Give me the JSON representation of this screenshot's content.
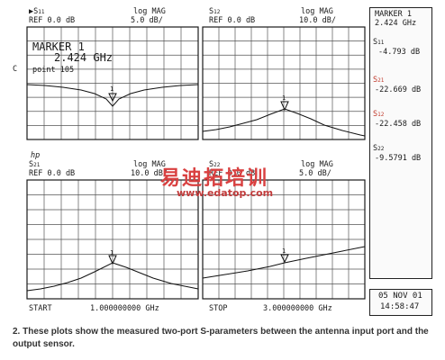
{
  "top_left": {
    "param": "▶S",
    "param_sub": "11",
    "ref": "REF 0.0 dB",
    "format": "log MAG",
    "scale": "5.0 dB/",
    "marker_title": "MARKER 1",
    "marker_freq": "2.424 GHz",
    "c": "C",
    "point": "point 105",
    "marker_num": "1"
  },
  "top_right": {
    "param": "S",
    "param_sub": "12",
    "ref": "REF 0.0 dB",
    "format": "log MAG",
    "scale": "10.0 dB/",
    "marker_num": "1"
  },
  "bottom_left": {
    "hp": "hp",
    "param": "S",
    "param_sub": "21",
    "ref": "REF 0.0 dB",
    "format": "log MAG",
    "scale": "10.0 dB/",
    "marker_num": "1"
  },
  "bottom_right": {
    "param": "S",
    "param_sub": "22",
    "ref": "REF 0.0 dB",
    "format": "log MAG",
    "scale": "5.0 dB/",
    "marker_num": "1"
  },
  "sweep": {
    "start_label": "START",
    "start_value": "1.000000000 GHz",
    "stop_label": "STOP",
    "stop_value": "3.000000000 GHz"
  },
  "marker_panel": {
    "title": "MARKER 1",
    "freq": "2.424 GHz",
    "items": [
      {
        "param": "S",
        "sub": "11",
        "value": "-4.793 dB",
        "color": "#1a1a1a"
      },
      {
        "param": "S",
        "sub": "21",
        "value": "-22.669 dB",
        "color": "#c0392b"
      },
      {
        "param": "S",
        "sub": "12",
        "value": "-22.458 dB",
        "color": "#c0392b"
      },
      {
        "param": "S",
        "sub": "22",
        "value": "-9.5791 dB",
        "color": "#1a1a1a"
      }
    ]
  },
  "datetime": {
    "date": "05 NOV 01",
    "time": "14:58:47"
  },
  "watermark": {
    "cn": "易迪拓培训",
    "url": "www.edatop.com"
  },
  "caption": "2. These plots show the measured two-port S-parameters between the antenna input port and the output sensor."
}
